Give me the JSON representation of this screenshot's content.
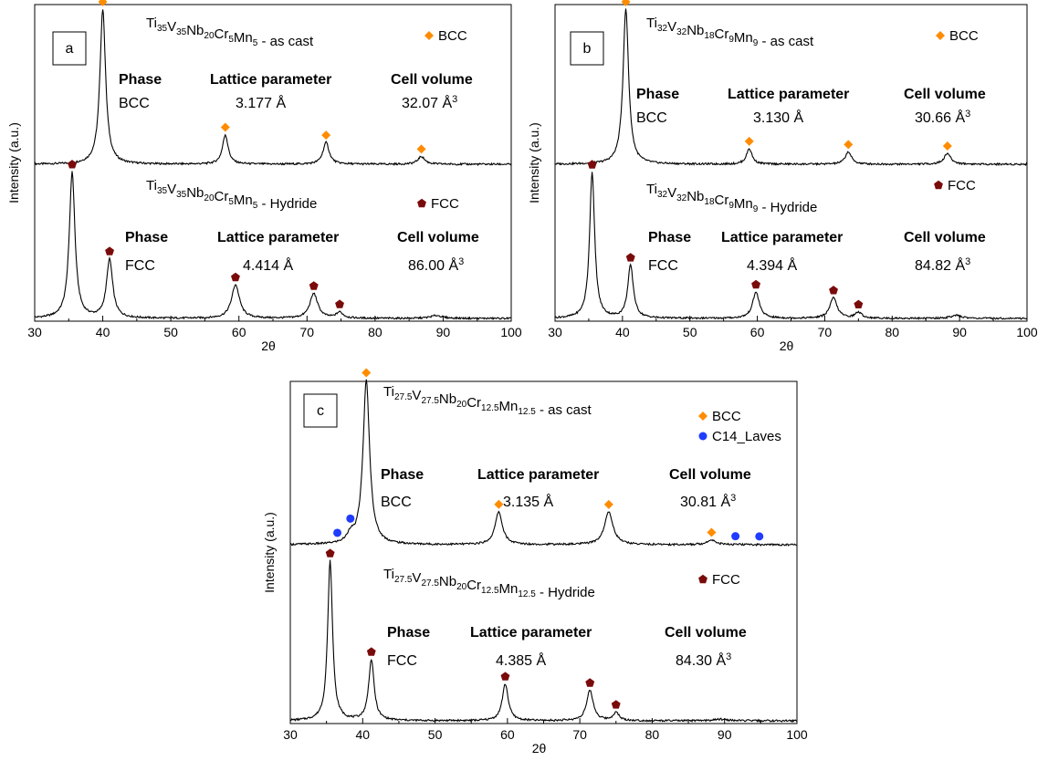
{
  "colors": {
    "bcc": "#ff8c00",
    "fcc": "#7a0b0b",
    "c14": "#1f3cff",
    "line": "#000000"
  },
  "chart_data": [
    {
      "panel": "a",
      "type": "line",
      "x_label": "2θ",
      "y_label": "Intensity (a.u.)",
      "xlim": [
        30,
        100
      ],
      "xticks": [
        "30",
        "40",
        "50",
        "60",
        "70",
        "80",
        "90",
        "100"
      ],
      "legends": [
        {
          "marker": "BCC",
          "label": "BCC"
        },
        {
          "marker": "FCC",
          "label": "FCC"
        }
      ],
      "traces": [
        {
          "title": {
            "b0": "Ti",
            "s0": "35",
            "b1": "V",
            "s1": "35",
            "b2": "Nb",
            "s2": "20",
            "b3": "Cr",
            "s3": "5",
            "b4": "Mn",
            "s4": "5",
            "rest": " - as cast"
          },
          "table": {
            "h1": "Phase",
            "h2": "Lattice parameter",
            "h3": "Cell volume",
            "v1": "BCC",
            "v2": "3.177 Å",
            "v3": "32.07 Å",
            "v3sup": "3"
          },
          "marker": "BCC",
          "peaks": [
            {
              "x": 40.0,
              "h": 1.0,
              "w": 0.5
            },
            {
              "x": 58.0,
              "h": 0.19,
              "w": 0.5
            },
            {
              "x": 72.8,
              "h": 0.14,
              "w": 0.55
            },
            {
              "x": 86.8,
              "h": 0.05,
              "w": 0.6
            }
          ],
          "markers_x": [
            40.0,
            58.0,
            72.8,
            86.8
          ]
        },
        {
          "title": {
            "b0": "Ti",
            "s0": "35",
            "b1": "V",
            "s1": "35",
            "b2": "Nb",
            "s2": "20",
            "b3": "Cr",
            "s3": "5",
            "b4": "Mn",
            "s4": "5",
            "rest": " - Hydride"
          },
          "table": {
            "h1": "Phase",
            "h2": "Lattice parameter",
            "h3": "Cell volume",
            "v1": "FCC",
            "v2": "4.414 Å",
            "v3": "86.00 Å",
            "v3sup": "3"
          },
          "marker": "FCC",
          "peaks": [
            {
              "x": 35.5,
              "h": 1.0,
              "w": 0.5
            },
            {
              "x": 41.0,
              "h": 0.4,
              "w": 0.55
            },
            {
              "x": 59.5,
              "h": 0.23,
              "w": 0.7
            },
            {
              "x": 71.0,
              "h": 0.17,
              "w": 0.7
            },
            {
              "x": 74.8,
              "h": 0.04,
              "w": 0.6
            },
            {
              "x": 89.0,
              "h": 0.02,
              "w": 1.0
            }
          ],
          "markers_x": [
            35.5,
            41.0,
            59.5,
            71.0,
            74.8
          ]
        }
      ]
    },
    {
      "panel": "b",
      "type": "line",
      "x_label": "2θ",
      "y_label": "Intensity (a.u.)",
      "xlim": [
        30,
        100
      ],
      "xticks": [
        "30",
        "40",
        "50",
        "60",
        "70",
        "80",
        "90",
        "100"
      ],
      "legends": [
        {
          "marker": "BCC",
          "label": "BCC"
        },
        {
          "marker": "FCC",
          "label": "FCC"
        }
      ],
      "traces": [
        {
          "title": {
            "b0": "Ti",
            "s0": "32",
            "b1": "V",
            "s1": "32",
            "b2": "Nb",
            "s2": "18",
            "b3": "Cr",
            "s3": "9",
            "b4": "Mn",
            "s4": "9",
            "rest": " - as cast"
          },
          "table": {
            "h1": "Phase",
            "h2": "Lattice parameter",
            "h3": "Cell volume",
            "v1": "BCC",
            "v2": "3.130 Å",
            "v3": "30.66 Å",
            "v3sup": "3"
          },
          "marker": "BCC",
          "peaks": [
            {
              "x": 40.5,
              "h": 1.0,
              "w": 0.5
            },
            {
              "x": 58.8,
              "h": 0.1,
              "w": 0.5
            },
            {
              "x": 73.5,
              "h": 0.08,
              "w": 0.55
            },
            {
              "x": 88.2,
              "h": 0.07,
              "w": 0.6
            }
          ],
          "markers_x": [
            40.5,
            58.8,
            73.5,
            88.2
          ]
        },
        {
          "title": {
            "b0": "Ti",
            "s0": "32",
            "b1": "V",
            "s1": "32",
            "b2": "Nb",
            "s2": "18",
            "b3": "Cr",
            "s3": "9",
            "b4": "Mn",
            "s4": "9",
            "rest": " - Hydride"
          },
          "table": {
            "h1": "Phase",
            "h2": "Lattice parameter",
            "h3": "Cell volume",
            "v1": "FCC",
            "v2": "4.394 Å",
            "v3": "84.82 Å",
            "v3sup": "3"
          },
          "marker": "FCC",
          "peaks": [
            {
              "x": 35.5,
              "h": 1.0,
              "w": 0.45
            },
            {
              "x": 41.2,
              "h": 0.36,
              "w": 0.5
            },
            {
              "x": 59.8,
              "h": 0.18,
              "w": 0.6
            },
            {
              "x": 71.3,
              "h": 0.14,
              "w": 0.65
            },
            {
              "x": 75.0,
              "h": 0.04,
              "w": 0.6
            },
            {
              "x": 89.5,
              "h": 0.02,
              "w": 1.0
            }
          ],
          "markers_x": [
            35.5,
            41.2,
            59.8,
            71.3,
            75.0
          ]
        }
      ]
    },
    {
      "panel": "c",
      "type": "line",
      "x_label": "2θ",
      "y_label": "Intensity (a.u.)",
      "xlim": [
        30,
        100
      ],
      "xticks": [
        "30",
        "40",
        "50",
        "60",
        "70",
        "80",
        "90",
        "100"
      ],
      "legends": [
        {
          "marker": "BCC",
          "label": "BCC"
        },
        {
          "marker": "C14",
          "label": "C14_Laves"
        },
        {
          "marker": "FCC",
          "label": "FCC"
        }
      ],
      "traces": [
        {
          "title": {
            "b0": "Ti",
            "s0": "27.5",
            "b1": "V",
            "s1": "27.5",
            "b2": "Nb",
            "s2": "20",
            "b3": "Cr",
            "s3": "12.5",
            "b4": "Mn",
            "s4": "12.5",
            "rest": " - as cast"
          },
          "table": {
            "h1": "Phase",
            "h2": "Lattice parameter",
            "h3": "Cell volume",
            "v1": "BCC",
            "v2": "3.135 Å",
            "v3": "30.81 Å",
            "v3sup": "3"
          },
          "marker": "BCC",
          "peaks": [
            {
              "x": 40.5,
              "h": 1.0,
              "w": 0.55
            },
            {
              "x": 38.3,
              "h": 0.05,
              "w": 0.5
            },
            {
              "x": 58.8,
              "h": 0.2,
              "w": 0.6
            },
            {
              "x": 74.0,
              "h": 0.2,
              "w": 0.7
            },
            {
              "x": 88.2,
              "h": 0.03,
              "w": 0.7
            }
          ],
          "markers_x": [
            40.5,
            58.8,
            74.0,
            88.2
          ],
          "extra_markers": {
            "marker": "C14",
            "x": [
              36.5,
              38.3,
              91.5,
              94.8
            ]
          }
        },
        {
          "title": {
            "b0": "Ti",
            "s0": "27.5",
            "b1": "V",
            "s1": "27.5",
            "b2": "Nb",
            "s2": "20",
            "b3": "Cr",
            "s3": "12.5",
            "b4": "Mn",
            "s4": "12.5",
            "rest": " - Hydride"
          },
          "table": {
            "h1": "Phase",
            "h2": "Lattice parameter",
            "h3": "Cell volume",
            "v1": "FCC",
            "v2": "4.385 Å",
            "v3": "84.30 Å",
            "v3sup": "3"
          },
          "marker": "FCC",
          "peaks": [
            {
              "x": 35.5,
              "h": 1.0,
              "w": 0.4
            },
            {
              "x": 41.2,
              "h": 0.38,
              "w": 0.45
            },
            {
              "x": 59.7,
              "h": 0.23,
              "w": 0.5
            },
            {
              "x": 71.4,
              "h": 0.19,
              "w": 0.55
            },
            {
              "x": 75.0,
              "h": 0.05,
              "w": 0.5
            },
            {
              "x": 89.5,
              "h": 0.01,
              "w": 1.0
            }
          ],
          "markers_x": [
            35.5,
            41.2,
            59.7,
            71.4,
            75.0
          ]
        }
      ]
    }
  ]
}
